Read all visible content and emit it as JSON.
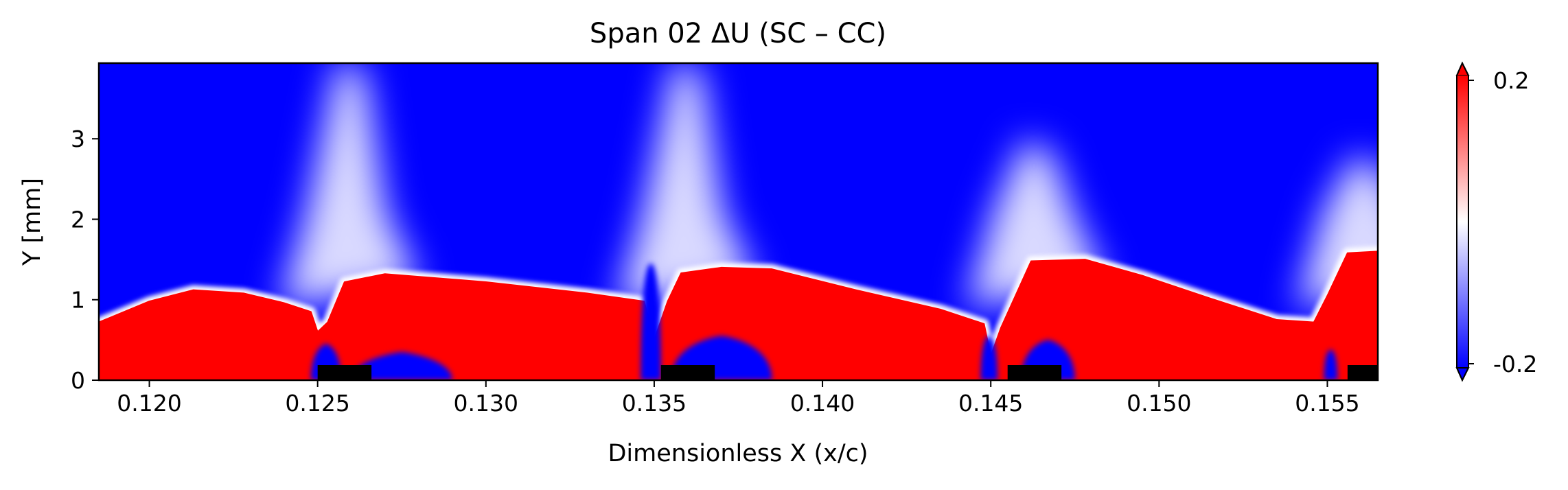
{
  "chart_data": {
    "type": "heatmap",
    "title": "Span 02  ΔU (SC – CC)",
    "xlabel": "Dimensionless X (x/c)",
    "ylabel": "Y [mm]",
    "xlim": [
      0.1185,
      0.1565
    ],
    "ylim": [
      0,
      4
    ],
    "x_ticks": [
      0.12,
      0.125,
      0.13,
      0.135,
      0.14,
      0.145,
      0.15,
      0.155
    ],
    "x_tick_labels": [
      "0.120",
      "0.125",
      "0.130",
      "0.135",
      "0.140",
      "0.145",
      "0.150",
      "0.155"
    ],
    "y_ticks": [
      0,
      1,
      2,
      3
    ],
    "y_tick_labels": [
      "0",
      "1",
      "2",
      "3"
    ],
    "colormap": "bwr",
    "colors": {
      "low": "#0000ff",
      "mid": "#ffffff",
      "high": "#ff0000",
      "marker": "#000000"
    },
    "colorbar": {
      "min": -0.2,
      "max": 0.2,
      "tick_labels": [
        "-0.2",
        "0.2"
      ],
      "extend": "both"
    },
    "background_value": -0.2,
    "positive_region_boundary": {
      "x": [
        0.1185,
        0.12,
        0.1213,
        0.1228,
        0.124,
        0.1248,
        0.125,
        0.1253,
        0.1258,
        0.127,
        0.13,
        0.133,
        0.1347,
        0.135,
        0.1354,
        0.1358,
        0.137,
        0.1385,
        0.141,
        0.1435,
        0.1448,
        0.145,
        0.1453,
        0.1462,
        0.1478,
        0.1495,
        0.1515,
        0.1535,
        0.1546,
        0.155,
        0.1556,
        0.1565
      ],
      "y_top_mm": [
        0.72,
        0.98,
        1.12,
        1.08,
        0.96,
        0.85,
        0.6,
        0.72,
        1.22,
        1.32,
        1.22,
        1.08,
        0.98,
        0.5,
        0.98,
        1.33,
        1.4,
        1.38,
        1.12,
        0.88,
        0.7,
        0.3,
        0.65,
        1.48,
        1.5,
        1.3,
        1.02,
        0.75,
        0.72,
        1.05,
        1.58,
        1.6
      ]
    },
    "blowing_wakes": [
      {
        "x": 0.1258,
        "peak_height_mm": 4.0
      },
      {
        "x": 0.1358,
        "peak_height_mm": 4.0
      },
      {
        "x": 0.1462,
        "peak_height_mm": 3.0
      },
      {
        "x": 0.156,
        "peak_height_mm": 2.8
      }
    ],
    "negative_pockets": [
      {
        "x_start": 0.1248,
        "x_end": 0.1257,
        "height_mm": 0.45
      },
      {
        "x_start": 0.126,
        "x_end": 0.129,
        "height_mm": 0.35
      },
      {
        "x_start": 0.1346,
        "x_end": 0.1352,
        "height_mm": 1.45
      },
      {
        "x_start": 0.1355,
        "x_end": 0.1385,
        "height_mm": 0.55
      },
      {
        "x_start": 0.1447,
        "x_end": 0.1452,
        "height_mm": 0.55
      },
      {
        "x_start": 0.1459,
        "x_end": 0.1475,
        "height_mm": 0.5
      },
      {
        "x_start": 0.1549,
        "x_end": 0.1553,
        "height_mm": 0.38
      }
    ],
    "slot_markers_x": [
      [
        0.125,
        0.1266
      ],
      [
        0.1352,
        0.1368
      ],
      [
        0.1455,
        0.1471
      ],
      [
        0.1556,
        0.1565
      ]
    ]
  }
}
